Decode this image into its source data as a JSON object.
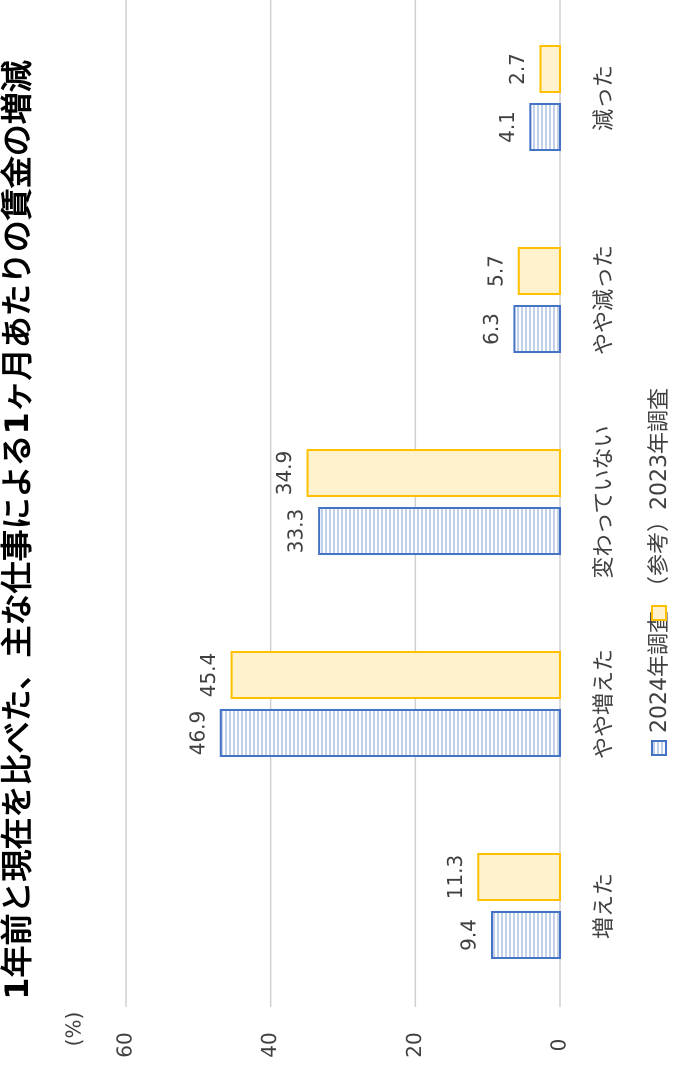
{
  "chart_data": {
    "type": "bar",
    "title": "1年前と現在を比べた、主な仕事による1ヶ月あたりの賃金の増減",
    "unit_label": "(%)",
    "categories": [
      "増えた",
      "やや増えた",
      "変わっていない",
      "やや減った",
      "減った"
    ],
    "series": [
      {
        "name": "2024年調査",
        "color": "#4472c4",
        "fill": "#e9eef8",
        "values": [
          9.4,
          46.9,
          33.3,
          6.3,
          4.1
        ]
      },
      {
        "name": "（参考）2023年調査",
        "color": "#ffc000",
        "fill": "#fff2cc",
        "values": [
          11.3,
          45.4,
          34.9,
          5.7,
          2.7
        ]
      }
    ],
    "ylim": [
      0,
      60
    ],
    "yticks": [
      0,
      20,
      40,
      60
    ],
    "grid": true,
    "legend": "bottom"
  }
}
